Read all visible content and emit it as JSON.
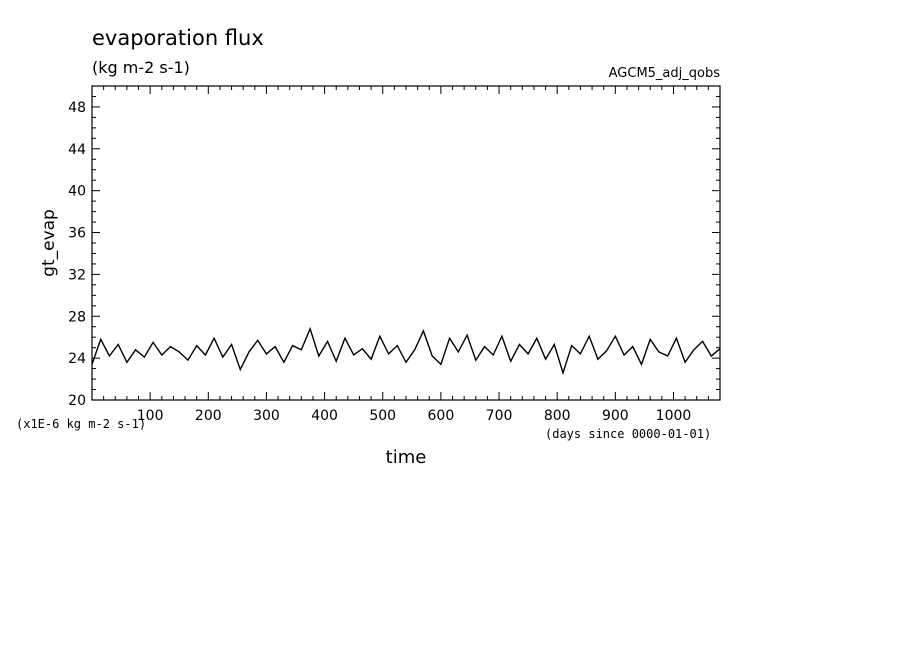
{
  "chart_data": {
    "type": "line",
    "title": "evaporation flux",
    "subtitle": "(kg m-2 s-1)",
    "run_label": "AGCM5_adj_qobs",
    "ylabel": "gt_evap",
    "xlabel": "time",
    "x_units_label": "(days since 0000-01-01)",
    "y_units_label": "(x1E-6 kg m-2 s-1)",
    "xlim": [
      0,
      1080
    ],
    "ylim": [
      20,
      50
    ],
    "x_ticks": [
      100,
      200,
      300,
      400,
      500,
      600,
      700,
      800,
      900,
      1000
    ],
    "x_tick_labels": [
      "100",
      "200",
      "300",
      "400",
      "500",
      "600",
      "700",
      "800",
      "900",
      "1000"
    ],
    "y_ticks": [
      20,
      24,
      28,
      32,
      36,
      40,
      44,
      48
    ],
    "y_tick_labels": [
      "20",
      "24",
      "28",
      "32",
      "36",
      "40",
      "44",
      "48"
    ],
    "line_color": "#000000",
    "grid": false,
    "series": [
      {
        "x": [
          0,
          15,
          30,
          45,
          60,
          75,
          90,
          105,
          120,
          135,
          150,
          165,
          180,
          195,
          210,
          225,
          240,
          255,
          270,
          285,
          300,
          315,
          330,
          345,
          360,
          375,
          390,
          405,
          420,
          435,
          450,
          465,
          480,
          495,
          510,
          525,
          540,
          555,
          570,
          585,
          600,
          615,
          630,
          645,
          660,
          675,
          690,
          705,
          720,
          735,
          750,
          765,
          780,
          795,
          810,
          825,
          840,
          855,
          870,
          885,
          900,
          915,
          930,
          945,
          960,
          975,
          990,
          1005,
          1020,
          1035,
          1050,
          1065,
          1080
        ],
        "y": [
          23.4,
          25.8,
          24.2,
          25.3,
          23.6,
          24.8,
          24.1,
          25.5,
          24.3,
          25.1,
          24.6,
          23.8,
          25.2,
          24.3,
          25.9,
          24.1,
          25.3,
          22.9,
          24.6,
          25.7,
          24.4,
          25.1,
          23.6,
          25.2,
          24.8,
          26.8,
          24.2,
          25.6,
          23.7,
          25.9,
          24.3,
          24.9,
          23.9,
          26.1,
          24.4,
          25.2,
          23.6,
          24.8,
          26.6,
          24.2,
          23.4,
          25.9,
          24.6,
          26.2,
          23.8,
          25.1,
          24.3,
          26.1,
          23.7,
          25.3,
          24.4,
          25.9,
          23.9,
          25.3,
          22.6,
          25.2,
          24.4,
          26.1,
          23.9,
          24.7,
          26.1,
          24.3,
          25.1,
          23.4,
          25.8,
          24.6,
          24.2,
          25.9,
          23.6,
          24.8,
          25.6,
          24.2,
          24.9
        ]
      }
    ]
  }
}
